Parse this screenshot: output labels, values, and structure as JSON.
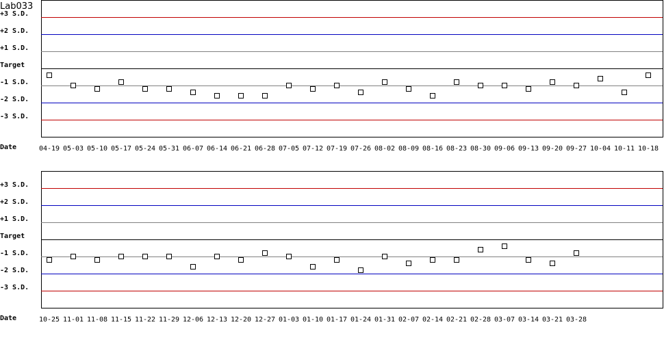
{
  "chart_data": [
    {
      "type": "scatter",
      "title": "Lab033",
      "ylabels": [
        "+3 S.D.",
        "+2 S.D.",
        "+1 S.D.",
        "Target",
        "-1 S.D.",
        "-2 S.D.",
        "-3 S.D."
      ],
      "xlabel": "Date",
      "ylim": [
        -3,
        3
      ],
      "categories": [
        "04-19",
        "05-03",
        "05-10",
        "05-17",
        "05-24",
        "05-31",
        "06-07",
        "06-14",
        "06-21",
        "06-28",
        "07-05",
        "07-12",
        "07-19",
        "07-26",
        "08-02",
        "08-09",
        "08-16",
        "08-23",
        "08-30",
        "09-06",
        "09-13",
        "09-20",
        "09-27",
        "10-04",
        "10-11",
        "10-18"
      ],
      "values": [
        -0.4,
        -1.0,
        -1.2,
        -0.8,
        -1.2,
        -1.2,
        -1.4,
        -1.6,
        -1.6,
        -1.6,
        -1.0,
        -1.2,
        -1.0,
        -1.4,
        -0.8,
        -1.2,
        -1.6,
        -0.8,
        -1.0,
        -1.0,
        -1.2,
        -0.8,
        -1.0,
        -0.6,
        -1.4,
        -0.4
      ]
    },
    {
      "type": "scatter",
      "title": "",
      "ylabels": [
        "+3 S.D.",
        "+2 S.D.",
        "+1 S.D.",
        "Target",
        "-1 S.D.",
        "-2 S.D.",
        "-3 S.D."
      ],
      "xlabel": "Date",
      "ylim": [
        -3,
        3
      ],
      "categories": [
        "10-25",
        "11-01",
        "11-08",
        "11-15",
        "11-22",
        "11-29",
        "12-06",
        "12-13",
        "12-20",
        "12-27",
        "01-03",
        "01-10",
        "01-17",
        "01-24",
        "01-31",
        "02-07",
        "02-14",
        "02-21",
        "02-28",
        "03-07",
        "03-14",
        "03-21",
        "03-28"
      ],
      "values": [
        -1.2,
        -1.0,
        -1.2,
        -1.0,
        -1.0,
        -1.0,
        -1.6,
        -1.0,
        -1.2,
        -0.8,
        -1.0,
        -1.6,
        -1.2,
        -1.8,
        -1.0,
        -1.4,
        -1.2,
        -1.2,
        -0.6,
        -0.4,
        -1.2,
        -1.4,
        -0.8
      ]
    }
  ],
  "colors": {
    "sd3": "#c00000",
    "sd2": "#0000c0",
    "sd1": "#808080",
    "target": "#000000"
  }
}
